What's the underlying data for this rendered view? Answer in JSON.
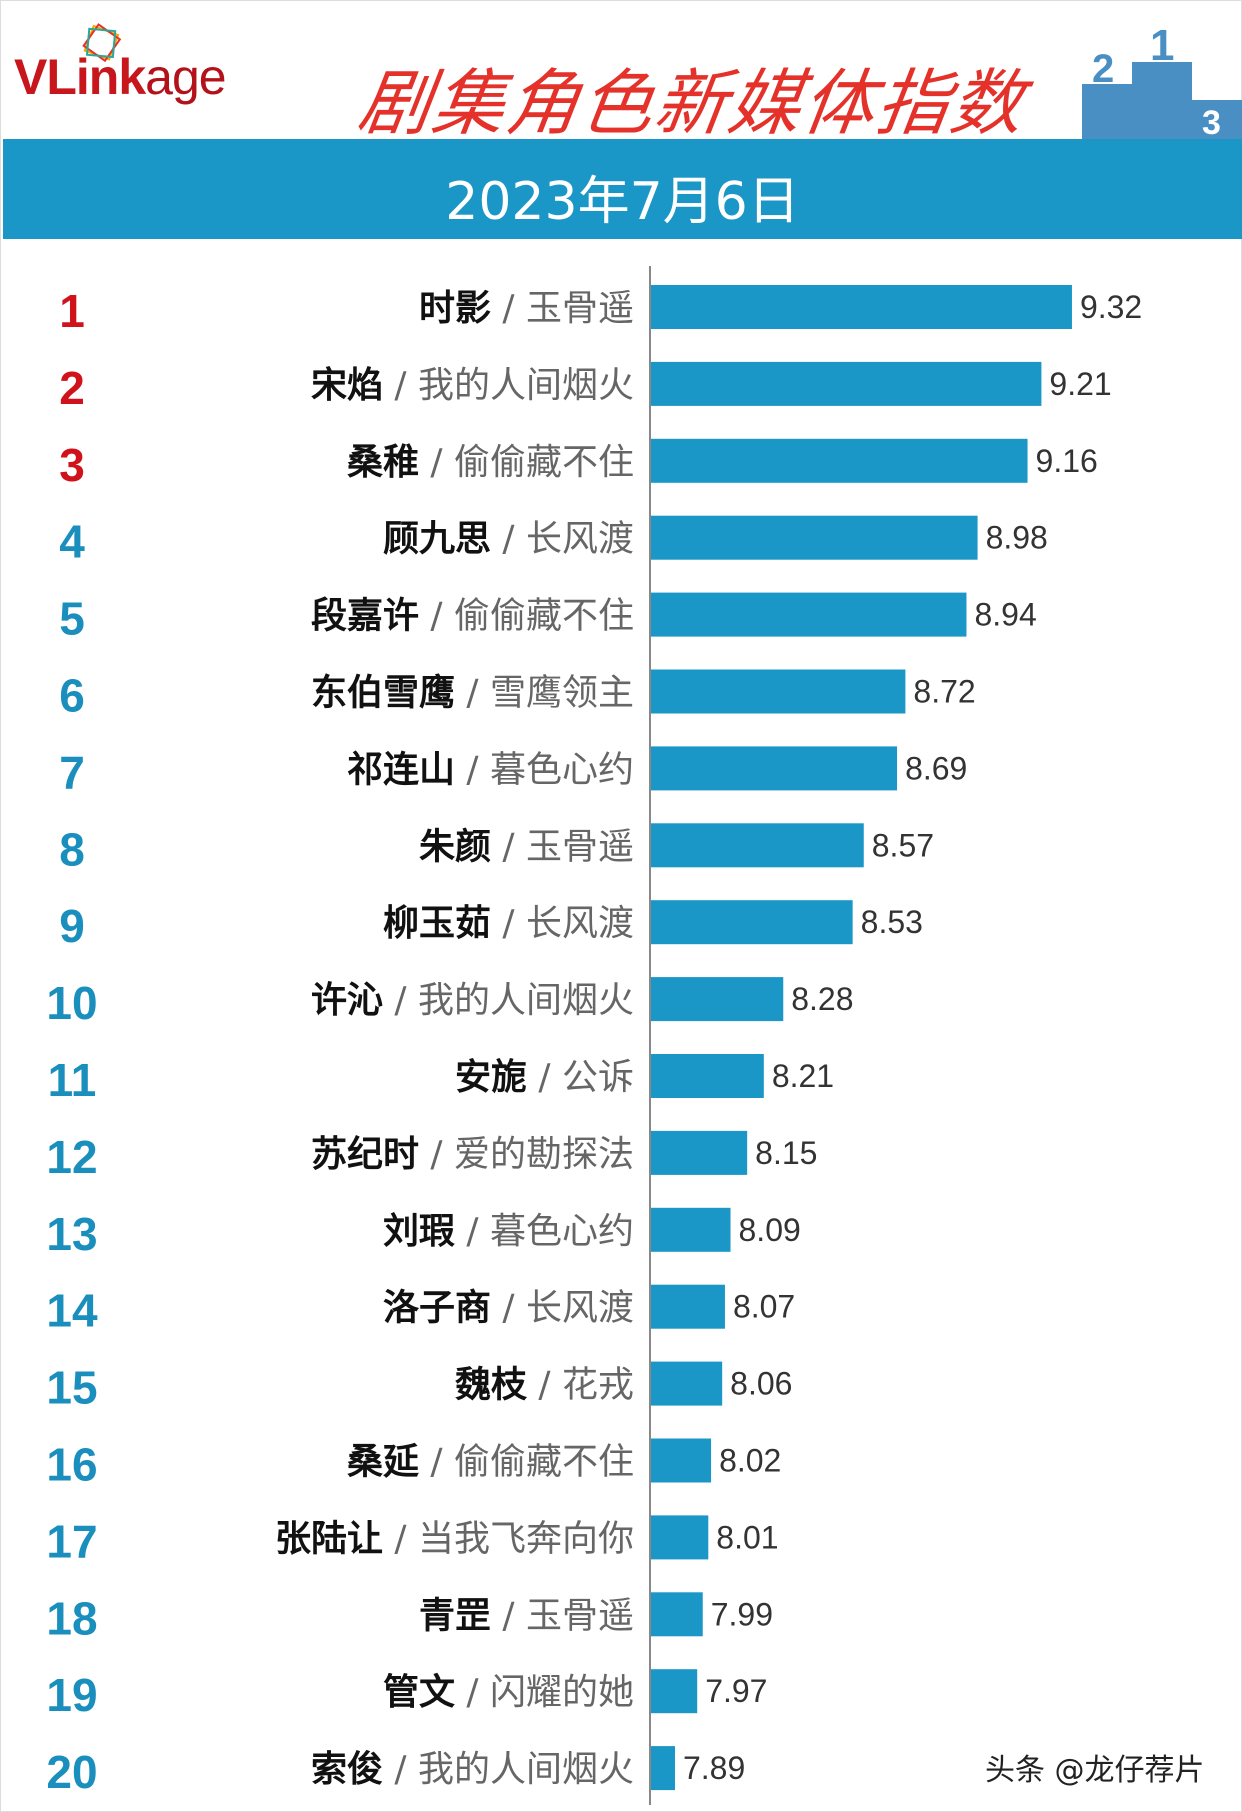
{
  "header": {
    "logo_main": "VLink",
    "logo_tail": "age",
    "title": "剧集角色新媒体指数",
    "date": "2023年7月6日"
  },
  "watermark": "头条 @龙仔荐片",
  "colors": {
    "bar": "#1a97c6",
    "rank_top": "#d0121b",
    "rank": "#1a8fbd",
    "title": "#e4322b"
  },
  "chart_data": {
    "type": "bar",
    "orientation": "horizontal",
    "title": "剧集角色新媒体指数",
    "subtitle": "2023年7月6日",
    "xlim": [
      7.8,
      9.4
    ],
    "grid": false,
    "rows": [
      {
        "rank": "1",
        "role": "时影",
        "drama": "玉骨遥",
        "value": 9.32,
        "label": "9.32"
      },
      {
        "rank": "2",
        "role": "宋焰",
        "drama": "我的人间烟火",
        "value": 9.21,
        "label": "9.21"
      },
      {
        "rank": "3",
        "role": "桑稚",
        "drama": "偷偷藏不住",
        "value": 9.16,
        "label": "9.16"
      },
      {
        "rank": "4",
        "role": "顾九思",
        "drama": "长风渡",
        "value": 8.98,
        "label": "8.98"
      },
      {
        "rank": "5",
        "role": "段嘉许",
        "drama": "偷偷藏不住",
        "value": 8.94,
        "label": "8.94"
      },
      {
        "rank": "6",
        "role": "东伯雪鹰",
        "drama": "雪鹰领主",
        "value": 8.72,
        "label": "8.72"
      },
      {
        "rank": "7",
        "role": "祁连山",
        "drama": "暮色心约",
        "value": 8.69,
        "label": "8.69"
      },
      {
        "rank": "8",
        "role": "朱颜",
        "drama": "玉骨遥",
        "value": 8.57,
        "label": "8.57"
      },
      {
        "rank": "9",
        "role": "柳玉茹",
        "drama": "长风渡",
        "value": 8.53,
        "label": "8.53"
      },
      {
        "rank": "10",
        "role": "许沁",
        "drama": "我的人间烟火",
        "value": 8.28,
        "label": "8.28"
      },
      {
        "rank": "11",
        "role": "安旎",
        "drama": "公诉",
        "value": 8.21,
        "label": "8.21"
      },
      {
        "rank": "12",
        "role": "苏纪时",
        "drama": "爱的勘探法",
        "value": 8.15,
        "label": "8.15"
      },
      {
        "rank": "13",
        "role": "刘瑕",
        "drama": "暮色心约",
        "value": 8.09,
        "label": "8.09"
      },
      {
        "rank": "14",
        "role": "洛子商",
        "drama": "长风渡",
        "value": 8.07,
        "label": "8.07"
      },
      {
        "rank": "15",
        "role": "魏枝",
        "drama": "花戎",
        "value": 8.06,
        "label": "8.06"
      },
      {
        "rank": "16",
        "role": "桑延",
        "drama": "偷偷藏不住",
        "value": 8.02,
        "label": "8.02"
      },
      {
        "rank": "17",
        "role": "张陆让",
        "drama": "当我飞奔向你",
        "value": 8.01,
        "label": "8.01"
      },
      {
        "rank": "18",
        "role": "青罡",
        "drama": "玉骨遥",
        "value": 7.99,
        "label": "7.99"
      },
      {
        "rank": "19",
        "role": "管文",
        "drama": "闪耀的她",
        "value": 7.97,
        "label": "7.97"
      },
      {
        "rank": "20",
        "role": "索俊",
        "drama": "我的人间烟火",
        "value": 7.89,
        "label": "7.89"
      }
    ]
  }
}
